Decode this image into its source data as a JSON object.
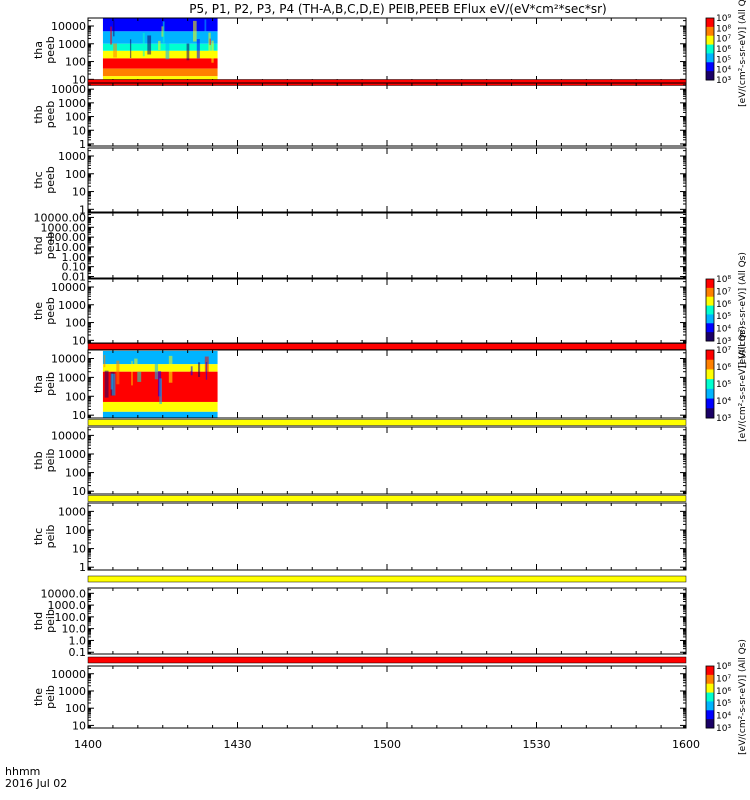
{
  "page": {
    "title": "P5, P1, P2, P3, P4 (TH-A,B,C,D,E) PEIB,PEEB EFlux eV/(eV*cm²*sec*sr)"
  },
  "footer": {
    "time_label": "hhmm",
    "date_label": "2016 Jul 02"
  },
  "chart_data": {
    "type": "heatmap",
    "x_axis": {
      "range_hhmm": [
        "1400",
        "1600"
      ],
      "ticks": [
        "1400",
        "1430",
        "1500",
        "1530",
        "1600"
      ]
    },
    "spectrogram_color_scale": [
      "#1a0066",
      "#0000ff",
      "#00b4ff",
      "#00ffd0",
      "#ffff00",
      "#ff8000",
      "#ff0000"
    ],
    "colorbars": [
      {
        "panels": [
          "tha peeb"
        ],
        "label": "[eV/(cm²-s-sr-eV)] (All Qs)",
        "ticks": [
          "10⁹",
          "10⁸",
          "10⁷",
          "10⁶",
          "10⁵",
          "10⁴",
          "10³"
        ]
      },
      {
        "panels": [
          "the peeb"
        ],
        "label": "[eV/(cm²-s-sr-eV)] (All Qs)",
        "ticks": [
          "10⁸",
          "10⁷",
          "10⁶",
          "10⁵",
          "10⁴",
          "10³"
        ]
      },
      {
        "panels": [
          "tha peib",
          "thb peib"
        ],
        "label": "[eV/(cm²-s-sr-eV)] (All Qs)",
        "ticks": [
          "10⁷",
          "10⁶",
          "10⁵",
          "10⁴",
          "10³"
        ]
      },
      {
        "panels": [
          "the peib"
        ],
        "label": "[eV/(cm²-s-sr-eV)] (All Qs)",
        "ticks": [
          "10⁸",
          "10⁷",
          "10⁶",
          "10⁵",
          "10⁴",
          "10³"
        ]
      }
    ],
    "panels": [
      {
        "label": [
          "tha",
          "peeb"
        ],
        "yscale": "log",
        "yticks": [
          "10000",
          "1000",
          "100",
          "10"
        ],
        "spectrogram": {
          "x_range_hhmm": [
            "1403",
            "1426"
          ],
          "y_range_eV": [
            7,
            30000
          ],
          "bands": [
            {
              "y_range_eV": [
                5000,
                30000
              ],
              "color": "#0000ff"
            },
            {
              "y_range_eV": [
                1000,
                5000
              ],
              "color": "#00b4ff"
            },
            {
              "y_range_eV": [
                400,
                1000
              ],
              "color": "#00ffd0"
            },
            {
              "y_range_eV": [
                150,
                400
              ],
              "color": "#ffff00"
            },
            {
              "y_range_eV": [
                40,
                150
              ],
              "color": "#ff0000"
            },
            {
              "y_range_eV": [
                15,
                40
              ],
              "color": "#ff8000"
            },
            {
              "y_range_eV": [
                7,
                15
              ],
              "color": "#ffff00"
            }
          ]
        },
        "quality_bar_below": "red"
      },
      {
        "label": [
          "thb",
          "peeb"
        ],
        "yscale": "log",
        "yticks": [
          "10000",
          "1000",
          "100",
          "10",
          "1"
        ],
        "spectrogram": null
      },
      {
        "label": [
          "thc",
          "peeb"
        ],
        "yscale": "log",
        "yticks": [
          "1000",
          "100",
          "10",
          "1"
        ],
        "spectrogram": null
      },
      {
        "label": [
          "thd",
          "peeb"
        ],
        "yscale": "log",
        "yticks": [
          "10000.00",
          "1000.00",
          "100.00",
          "10.00",
          "1.00",
          "0.10",
          "0.01"
        ],
        "spectrogram": null
      },
      {
        "label": [
          "the",
          "peeb"
        ],
        "yscale": "log",
        "yticks": [
          "10000",
          "1000",
          "100",
          "10"
        ],
        "spectrogram": null,
        "quality_bar_below": "red"
      },
      {
        "label": [
          "tha",
          "peib"
        ],
        "yscale": "log",
        "yticks": [
          "10000",
          "1000",
          "100",
          "10"
        ],
        "spectrogram": {
          "x_range_hhmm": [
            "1403",
            "1426"
          ],
          "y_range_eV": [
            5,
            25000
          ],
          "bands": [
            {
              "y_range_eV": [
                5000,
                25000
              ],
              "color": "#00b4ff"
            },
            {
              "y_range_eV": [
                2000,
                5000
              ],
              "color": "#ffff00"
            },
            {
              "y_range_eV": [
                50,
                2000
              ],
              "color": "#ff0000"
            },
            {
              "y_range_eV": [
                15,
                50
              ],
              "color": "#ffff00"
            },
            {
              "y_range_eV": [
                5,
                15
              ],
              "color": "#00b4ff"
            }
          ]
        },
        "quality_bar_below": "yellow"
      },
      {
        "label": [
          "thb",
          "peib"
        ],
        "yscale": "log",
        "yticks": [
          "10000",
          "1000",
          "100",
          "10"
        ],
        "spectrogram": null,
        "quality_bar_below": "yellow"
      },
      {
        "label": [
          "thc",
          "peib"
        ],
        "yscale": "log",
        "yticks": [
          "1000",
          "100",
          "10",
          "1"
        ],
        "spectrogram": null,
        "quality_bar_below": "yellow"
      },
      {
        "label": [
          "thd",
          "peib"
        ],
        "yscale": "log",
        "yticks": [
          "10000.0",
          "1000.0",
          "100.0",
          "10.0",
          "1.0",
          "0.1"
        ],
        "spectrogram": null,
        "quality_bar_below": "red"
      },
      {
        "label": [
          "the",
          "peib"
        ],
        "yscale": "log",
        "yticks": [
          "10000",
          "1000",
          "100",
          "10"
        ],
        "spectrogram": null
      }
    ]
  }
}
